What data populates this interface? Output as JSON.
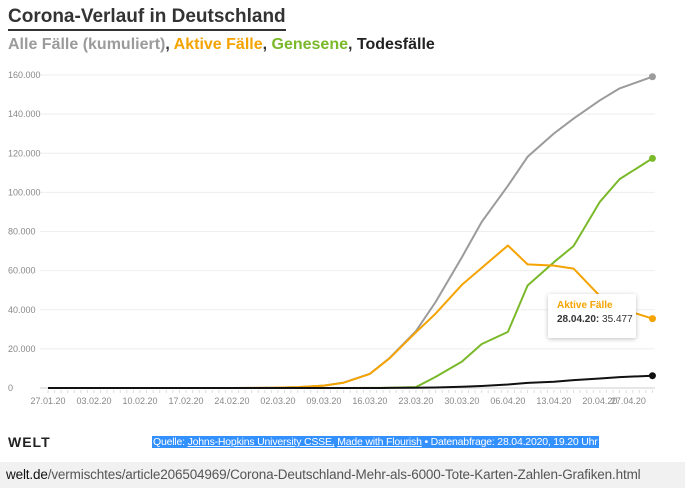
{
  "title": "Corona-Verlauf in Deutschland",
  "legend": {
    "total": "Alle Fälle (kumuliert)",
    "active": "Aktive Fälle",
    "recovered": "Genesene",
    "deaths": "Todesfälle",
    "sep": ", "
  },
  "colors": {
    "total": "#9b9b9b",
    "active": "#f5a300",
    "recovered": "#7ab929",
    "deaths": "#111111"
  },
  "chart_data": {
    "type": "line",
    "ylim": [
      0,
      160000
    ],
    "yticks": [
      "0",
      "20.000",
      "40.000",
      "60.000",
      "80.000",
      "100.000",
      "120.000",
      "140.000",
      "160.000"
    ],
    "xticks": [
      "27.01.20",
      "03.02.20",
      "10.02.20",
      "17.02.20",
      "24.02.20",
      "02.03.20",
      "09.03.20",
      "16.03.20",
      "23.03.20",
      "30.03.20",
      "06.04.20",
      "13.04.20",
      "20.04.20",
      "27.04.20"
    ],
    "x": [
      "2020-01-27",
      "2020-02-24",
      "2020-03-01",
      "2020-03-05",
      "2020-03-09",
      "2020-03-12",
      "2020-03-16",
      "2020-03-19",
      "2020-03-23",
      "2020-03-26",
      "2020-03-30",
      "2020-04-02",
      "2020-04-06",
      "2020-04-09",
      "2020-04-13",
      "2020-04-16",
      "2020-04-20",
      "2020-04-23",
      "2020-04-28"
    ],
    "series": [
      {
        "name": "Alle Fälle (kumuliert)",
        "key": "total",
        "values": [
          0,
          16,
          130,
          482,
          1224,
          2745,
          7272,
          15320,
          29056,
          43938,
          66885,
          84794,
          103374,
          118181,
          130072,
          137698,
          147065,
          153129,
          159119
        ]
      },
      {
        "name": "Aktive Fälle",
        "key": "active",
        "values": [
          0,
          2,
          114,
          466,
          1204,
          2714,
          7188,
          15163,
          28480,
          38012,
          52740,
          61337,
          72864,
          63167,
          62578,
          61046,
          47003,
          40754,
          35477
        ]
      },
      {
        "name": "Genesene",
        "key": "recovered",
        "values": [
          0,
          14,
          16,
          16,
          18,
          25,
          67,
          113,
          453,
          5673,
          13500,
          22440,
          28700,
          52407,
          64300,
          72600,
          95200,
          106800,
          117354
        ]
      },
      {
        "name": "Todesfälle",
        "key": "deaths",
        "values": [
          0,
          0,
          0,
          0,
          2,
          6,
          17,
          44,
          123,
          253,
          645,
          1017,
          1810,
          2607,
          3194,
          4052,
          4862,
          5575,
          6288
        ]
      }
    ],
    "grid": true,
    "tooltip": {
      "series": "Aktive Fälle",
      "date": "28.04.20:",
      "value": "35.477"
    }
  },
  "footer": {
    "logo": "WELT",
    "source_prefix": "Quelle: ",
    "source_link1": "Johns-Hopkins University CSSE,",
    "source_link2": "Made with Flourish",
    "source_suffix": " • Datenabfrage: 28.04.2020, 19.20 Uhr"
  },
  "url": {
    "domain": "welt.de",
    "path": "/vermischtes/article206504969/Corona-Deutschland-Mehr-als-6000-Tote-Karten-Zahlen-Grafiken.html"
  }
}
